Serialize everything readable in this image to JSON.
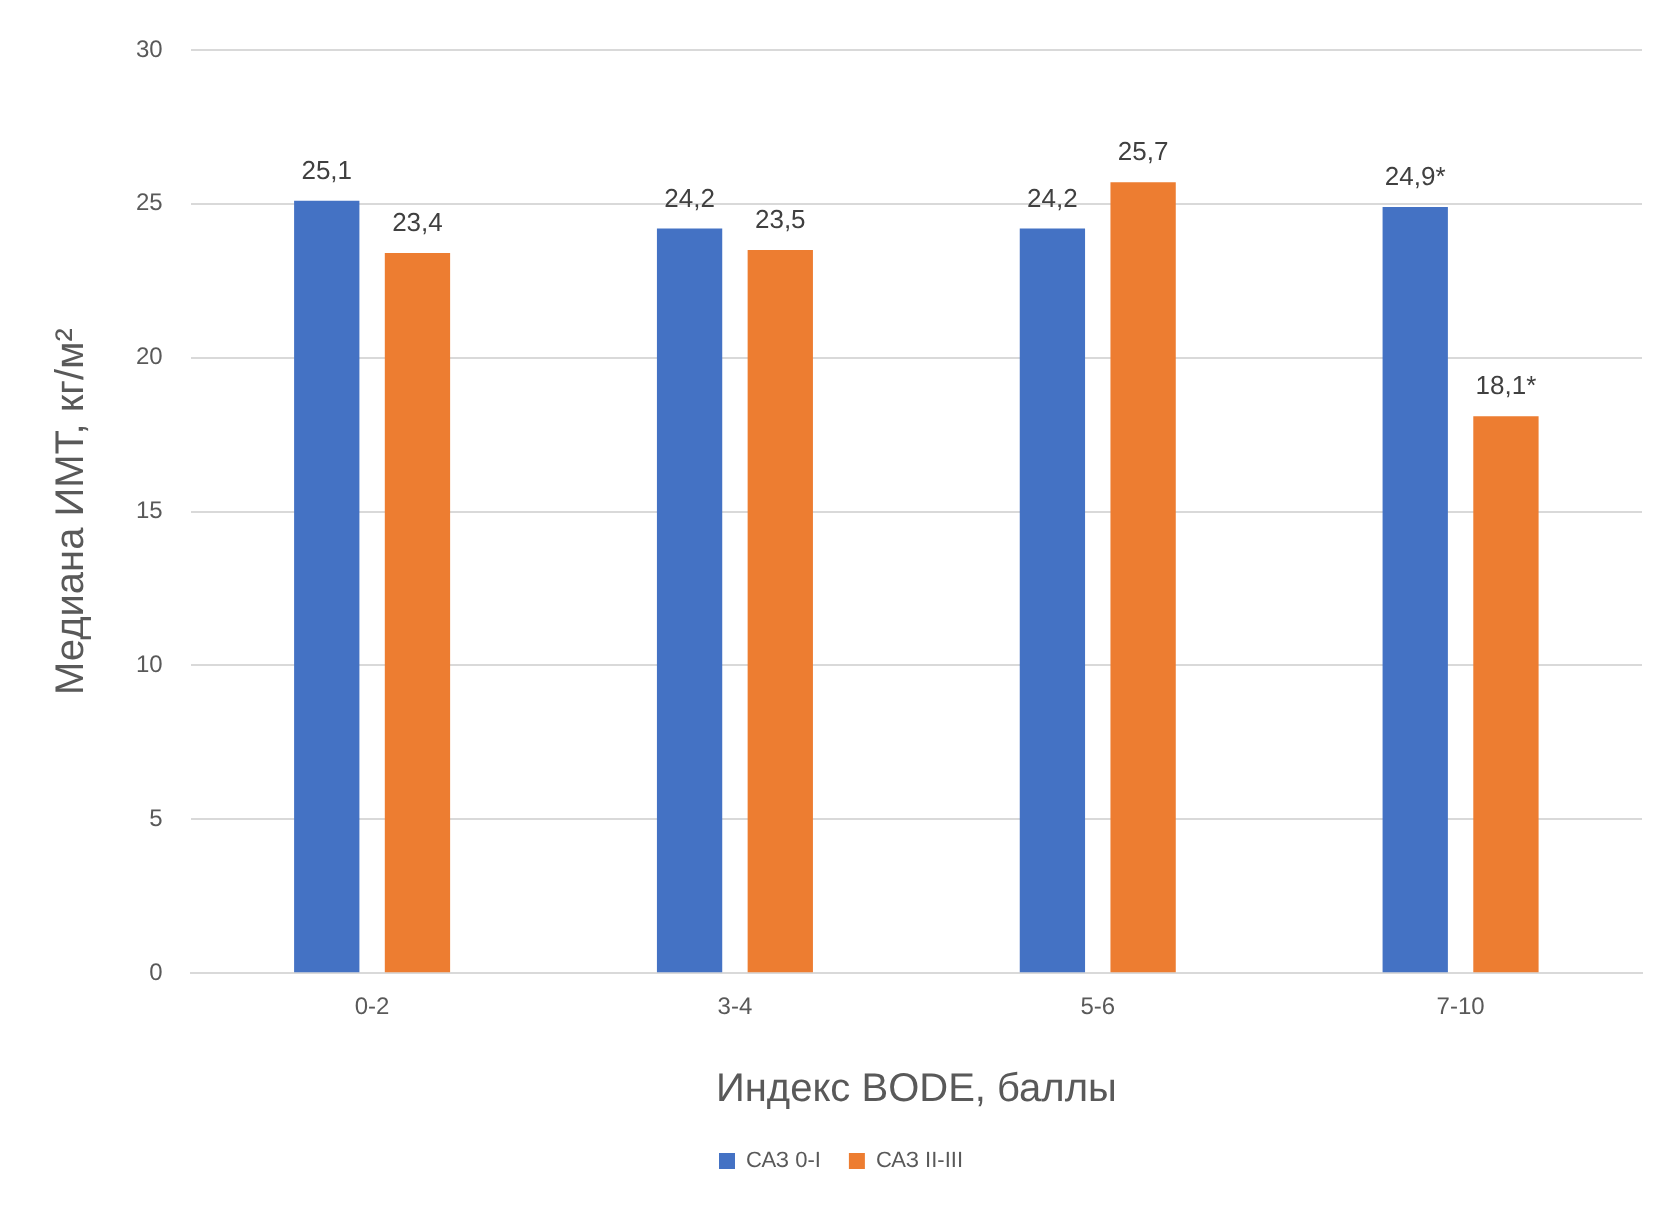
{
  "chart_data": {
    "type": "bar",
    "xlabel": "Индекс BODE, баллы",
    "ylabel": "Медиана ИМТ, кг/м²",
    "categories": [
      "0-2",
      "3-4",
      "5-6",
      "7-10"
    ],
    "series": [
      {
        "name": "САЗ 0-I",
        "color": "#4472c4",
        "values": [
          25.1,
          24.2,
          24.2,
          24.9
        ],
        "value_labels": [
          "25,1",
          "24,2",
          "24,2",
          "24,9*"
        ]
      },
      {
        "name": "САЗ II-III",
        "color": "#ed7d31",
        "values": [
          23.4,
          23.5,
          25.7,
          18.1
        ],
        "value_labels": [
          "23,4",
          "23,5",
          "25,7",
          "18,1*"
        ]
      }
    ],
    "ylim": [
      0,
      30
    ],
    "yticks": [
      0,
      5,
      10,
      15,
      20,
      25,
      30
    ],
    "grid": "y",
    "legend": "bottom"
  }
}
